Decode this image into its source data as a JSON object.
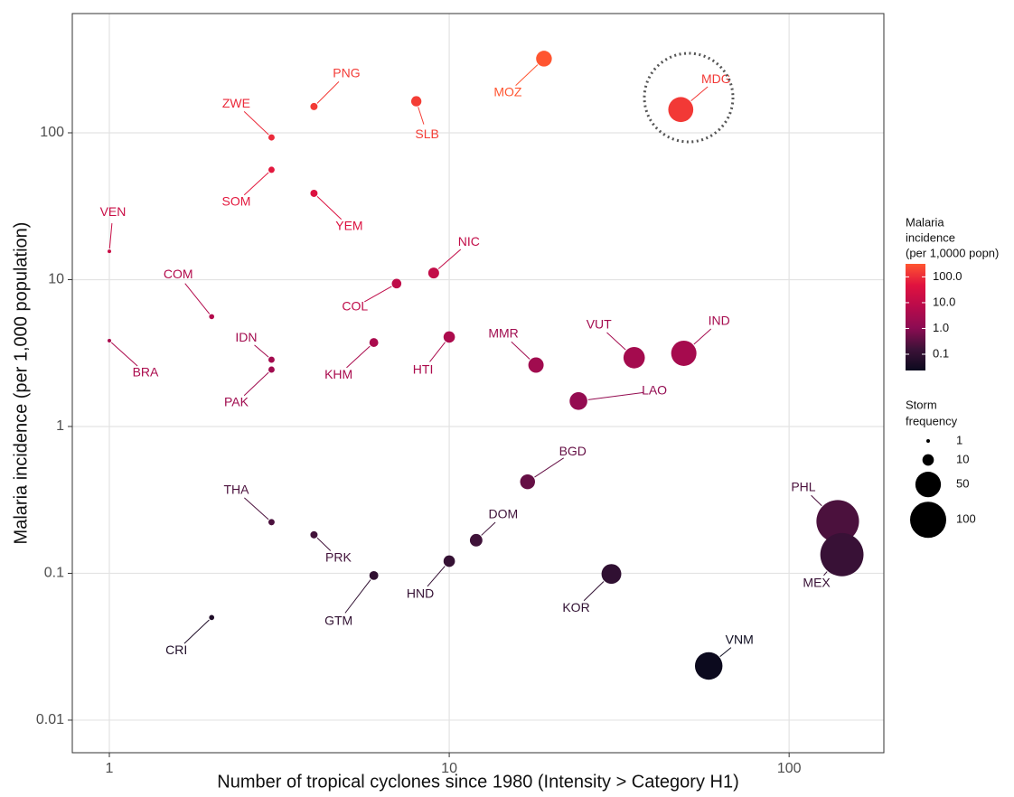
{
  "chart_data": {
    "type": "scatter",
    "x_label": "Number of tropical cyclones since 1980 (Intensity > Category H1)",
    "y_label": "Malaria incidence (per 1,000 population)",
    "log_x": true,
    "log_y": true,
    "grid": true,
    "xlim": [
      0.778,
      190
    ],
    "ylim": [
      0.006,
      649
    ],
    "xticks": [
      1,
      10,
      100
    ],
    "yticks": [
      0.01,
      0.1,
      1,
      10,
      100
    ],
    "labels": [
      "PNG",
      "ZWE",
      "SLB",
      "MOZ",
      "MDG",
      "SOM",
      "YEM",
      "VEN",
      "NIC",
      "COL",
      "COM",
      "IDN",
      "PAK",
      "BRA",
      "KHM",
      "HTI",
      "MMR",
      "VUT",
      "IND",
      "LAO",
      "BGD",
      "THA",
      "PRK",
      "DOM",
      "HND",
      "GTM",
      "KOR",
      "PHL",
      "MEX",
      "CRI",
      "VNM"
    ],
    "x": [
      4,
      3,
      8,
      19,
      48,
      3,
      4,
      1,
      9,
      7,
      2,
      3,
      3,
      1,
      6,
      10,
      18,
      35,
      49,
      24,
      17,
      3,
      4,
      12,
      10,
      6,
      30,
      139,
      143,
      2,
      58
    ],
    "y": [
      151,
      93,
      164,
      320,
      144,
      56,
      38.7,
      15.6,
      11.1,
      9.4,
      5.6,
      2.85,
      2.44,
      3.84,
      3.73,
      4.07,
      2.62,
      2.94,
      3.15,
      1.49,
      0.42,
      0.223,
      0.183,
      0.168,
      0.121,
      0.0966,
      0.099,
      0.226,
      0.134,
      0.05,
      0.0234
    ],
    "size": [
      4,
      3,
      8,
      19,
      48,
      3,
      4,
      1,
      9,
      7,
      2,
      3,
      3,
      1,
      6,
      10,
      18,
      35,
      49,
      24,
      17,
      3,
      4,
      12,
      10,
      6,
      30,
      139,
      143,
      2,
      58
    ],
    "color_legend": {
      "title": [
        "Malaria",
        "incidence",
        "(per 1,0000 popn)"
      ],
      "lim": [
        0.0234,
        320
      ],
      "colors": [
        "#0c0a1e",
        "#3c1238",
        "#8c0c52",
        "#b90b4b",
        "#e0123f",
        "#ff5530"
      ],
      "ticks": [
        {
          "value": 100,
          "label": "100.0"
        },
        {
          "value": 10,
          "label": "10.0"
        },
        {
          "value": 1,
          "label": "1.0"
        },
        0.1
      ]
    },
    "size_legend": {
      "title": [
        "Storm",
        "frequency"
      ],
      "values": [
        1,
        10,
        50,
        100
      ],
      "color": "#000000"
    }
  }
}
